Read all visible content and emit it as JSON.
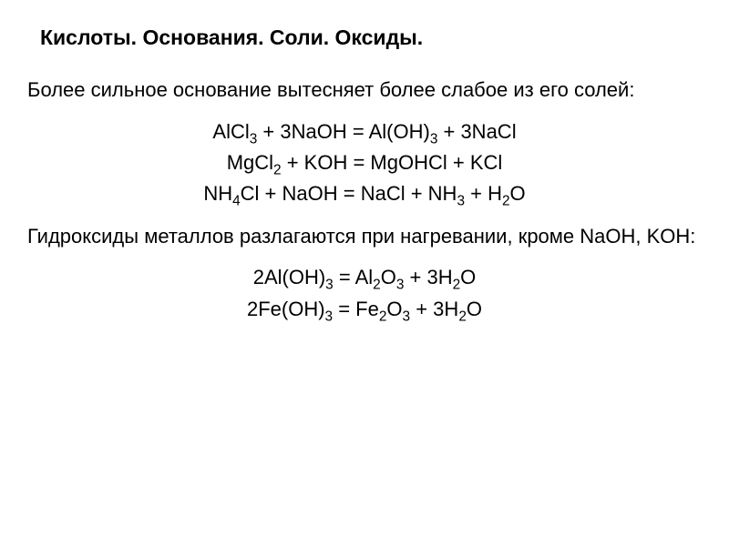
{
  "title": "Кислоты. Основания. Соли. Оксиды.",
  "section1": {
    "text": "Более сильное основание вытесняет более слабое из его солей:",
    "equations": [
      "AlCl<sub>3</sub> + 3NaOH = Al(OH)<sub>3</sub> + 3NaCl",
      "MgCl<sub>2</sub> + KOH = MgOHCl + KCl",
      "NH<sub>4</sub>Cl + NaOH = NaCl + NH<sub>3</sub> + H<sub>2</sub>O"
    ]
  },
  "section2": {
    "text": "Гидроксиды металлов разлагаются при нагревании, кроме NaOH, KOH:",
    "equations": [
      "2Al(OH)<sub>3</sub> = Al<sub>2</sub>O<sub>3</sub> + 3H<sub>2</sub>O",
      "2Fe(OH)<sub>3</sub> = Fe<sub>2</sub>O<sub>3</sub> + 3H<sub>2</sub>O"
    ]
  },
  "style": {
    "background_color": "#ffffff",
    "text_color": "#000000",
    "title_fontsize": 23,
    "body_fontsize": 22,
    "title_weight": "bold",
    "font_family": "Arial"
  }
}
